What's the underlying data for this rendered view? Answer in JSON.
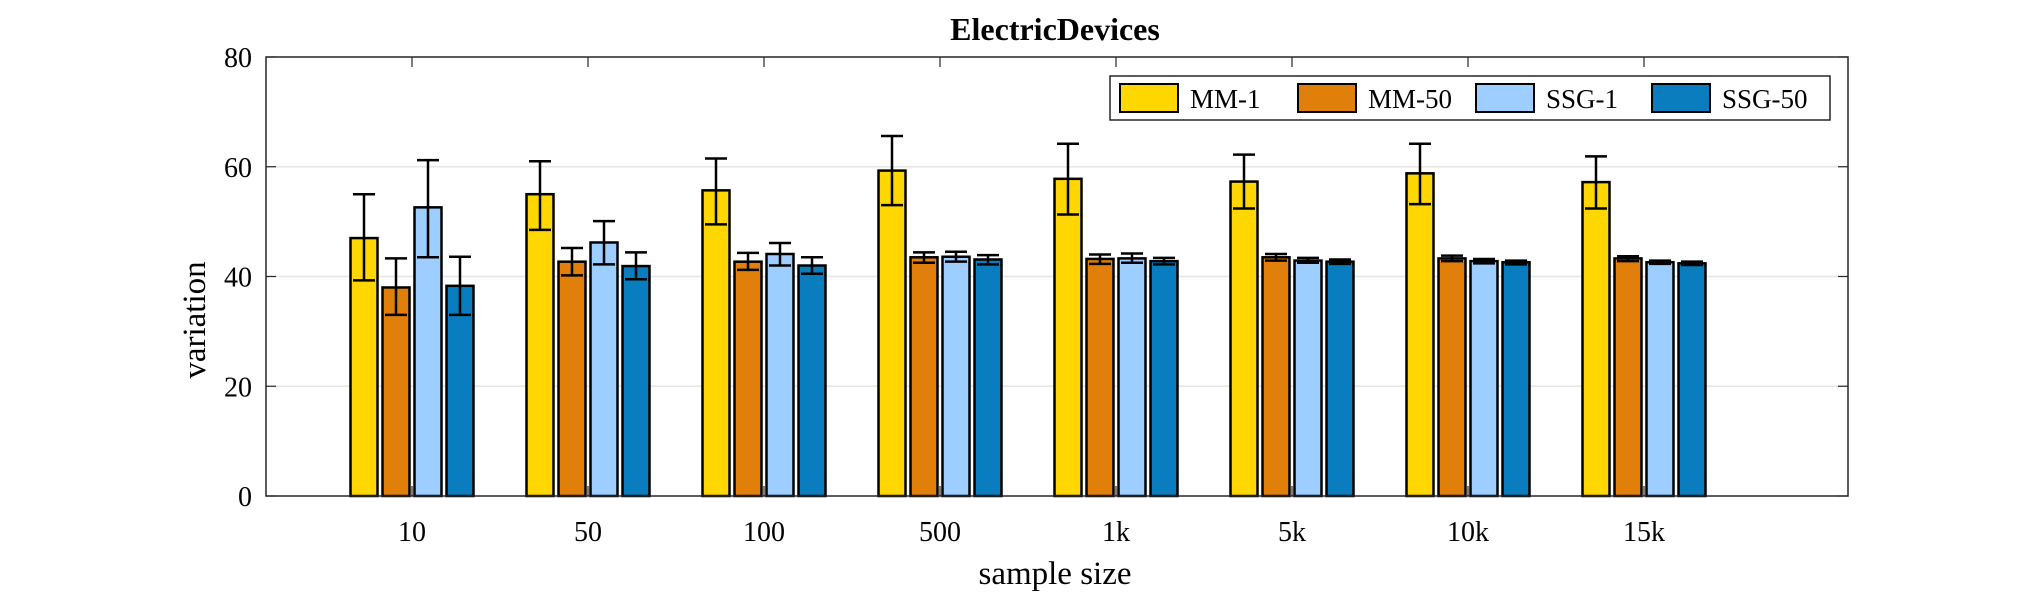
{
  "chart_data": {
    "type": "bar",
    "title": "ElectricDevices",
    "xlabel": "sample size",
    "ylabel": "variation",
    "ylim": [
      0,
      80
    ],
    "yticks": [
      0,
      20,
      40,
      60,
      80
    ],
    "grid": true,
    "legend_position": "top-right",
    "categories": [
      "10",
      "50",
      "100",
      "500",
      "1k",
      "5k",
      "10k",
      "15k"
    ],
    "series": [
      {
        "name": "MM-1",
        "color": "#FFD700",
        "values": [
          47,
          55,
          55.7,
          59.3,
          57.8,
          57.3,
          58.8,
          57.2
        ],
        "err_low": [
          39.3,
          48.5,
          49.5,
          53,
          51.3,
          52.4,
          53.2,
          52.4
        ],
        "err_high": [
          55,
          61,
          61.5,
          65.6,
          64.2,
          62.2,
          64.2,
          61.9
        ]
      },
      {
        "name": "MM-50",
        "color": "#E0800A",
        "values": [
          38,
          42.7,
          42.7,
          43.5,
          43.2,
          43.5,
          43.3,
          43.3
        ],
        "err_low": [
          33,
          40.2,
          41.2,
          42.5,
          42.3,
          42.9,
          42.8,
          42.8
        ],
        "err_high": [
          43.3,
          45.2,
          44.3,
          44.4,
          44,
          44.1,
          43.8,
          43.7
        ]
      },
      {
        "name": "SSG-1",
        "color": "#9ECEFF",
        "values": [
          52.6,
          46.2,
          44.1,
          43.6,
          43.3,
          42.9,
          42.8,
          42.6
        ],
        "err_low": [
          43.5,
          42.2,
          42,
          42.7,
          42.5,
          42.5,
          42.4,
          42.3
        ],
        "err_high": [
          61.2,
          50.1,
          46.1,
          44.5,
          44.2,
          43.4,
          43.2,
          42.9
        ]
      },
      {
        "name": "SSG-50",
        "color": "#0A7DBE",
        "values": [
          38.3,
          41.9,
          42,
          43.1,
          42.8,
          42.7,
          42.6,
          42.4
        ],
        "err_low": [
          33,
          39.5,
          40.5,
          42.2,
          42.2,
          42.3,
          42.2,
          42.1
        ],
        "err_high": [
          43.6,
          44.4,
          43.5,
          43.9,
          43.4,
          43.1,
          42.9,
          42.7
        ]
      }
    ]
  }
}
